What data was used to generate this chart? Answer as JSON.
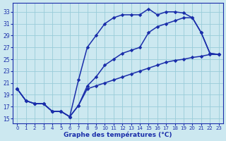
{
  "title": "Graphe des températures (°C)",
  "bg_color": "#cce8f0",
  "grid_color": "#99ccd9",
  "line_color": "#1a2eaa",
  "yticks": [
    15,
    17,
    19,
    21,
    23,
    25,
    27,
    29,
    31,
    33
  ],
  "xticks": [
    0,
    1,
    2,
    3,
    4,
    5,
    6,
    7,
    8,
    9,
    10,
    11,
    12,
    13,
    14,
    15,
    16,
    17,
    18,
    19,
    20,
    21,
    22,
    23
  ],
  "ylim": [
    14.2,
    34.5
  ],
  "xlim": [
    -0.5,
    23.5
  ],
  "curve1_x": [
    0,
    1,
    2,
    3,
    4,
    5,
    6,
    7,
    8,
    9,
    10,
    11,
    12,
    13,
    14,
    15,
    16,
    17,
    18,
    19,
    20,
    21,
    22,
    23
  ],
  "curve1_y": [
    20.0,
    18.0,
    17.5,
    17.5,
    16.2,
    16.2,
    15.3,
    21.5,
    27.0,
    29.0,
    31.0,
    32.0,
    32.5,
    32.5,
    32.5,
    33.5,
    32.5,
    33.0,
    33.0,
    32.8,
    32.0,
    29.5,
    26.0,
    25.8
  ],
  "curve2_x": [
    0,
    1,
    2,
    3,
    4,
    5,
    6,
    7,
    8,
    9,
    10,
    11,
    12,
    13,
    14,
    15,
    16,
    17,
    18,
    19,
    20,
    21,
    22,
    23
  ],
  "curve2_y": [
    20.0,
    18.0,
    17.5,
    17.5,
    16.2,
    16.2,
    15.3,
    17.2,
    20.5,
    22.0,
    24.0,
    25.0,
    26.0,
    26.5,
    27.0,
    29.5,
    30.5,
    31.0,
    31.5,
    32.0,
    32.0,
    29.5,
    26.0,
    25.8
  ],
  "curve3_x": [
    0,
    1,
    2,
    3,
    4,
    5,
    6,
    7,
    8,
    9,
    10,
    11,
    12,
    13,
    14,
    15,
    16,
    17,
    18,
    19,
    20,
    21,
    22,
    23
  ],
  "curve3_y": [
    20.0,
    18.0,
    17.5,
    17.5,
    16.2,
    16.2,
    15.3,
    17.2,
    20.0,
    20.5,
    21.0,
    21.5,
    22.0,
    22.5,
    23.0,
    23.5,
    24.0,
    24.5,
    24.8,
    25.0,
    25.3,
    25.5,
    25.8,
    25.8
  ],
  "lw": 1.1,
  "ms": 2.8
}
